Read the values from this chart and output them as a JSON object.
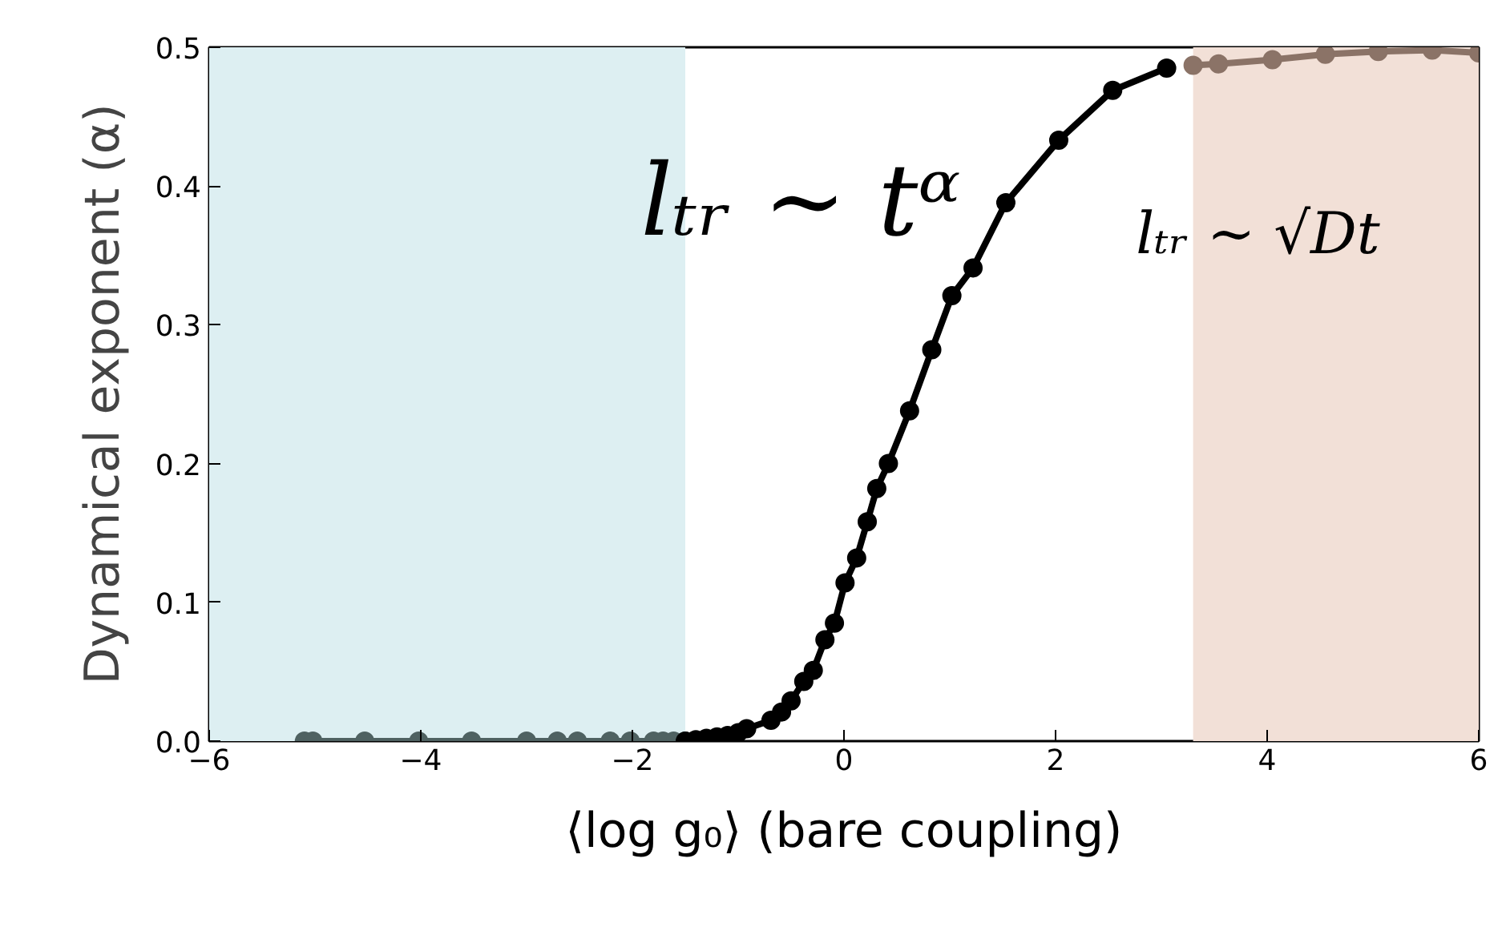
{
  "chart_data": {
    "type": "line",
    "xlabel": "⟨log g₀⟩ (bare coupling)",
    "ylabel": "Dynamical exponent (α)",
    "xlim": [
      -6,
      6
    ],
    "ylim": [
      0,
      0.5
    ],
    "xticks": [
      -6,
      -4,
      -2,
      0,
      2,
      4,
      6
    ],
    "yticks": [
      {
        "value": 0,
        "label": "0.0"
      },
      {
        "value": 0.1,
        "label": "0.1"
      },
      {
        "value": 0.2,
        "label": "0.2"
      },
      {
        "value": 0.3,
        "label": "0.3"
      },
      {
        "value": 0.4,
        "label": "0.4"
      },
      {
        "value": 0.5,
        "label": "0.5"
      }
    ],
    "grid": false,
    "marker": "circle",
    "line_style": "solid",
    "series": [
      {
        "color": "#4f6262",
        "x": [
          -5.1,
          -5.02,
          -4.53,
          -4.02,
          -3.52,
          -3.0,
          -2.71,
          -2.52,
          -2.21,
          -2.02,
          -1.8,
          -1.71,
          -1.61,
          -1.5
        ],
        "values": [
          0,
          0,
          0,
          0,
          0,
          0,
          0,
          0,
          0,
          0,
          0,
          0,
          0,
          0
        ]
      },
      {
        "color": "#000000",
        "x": [
          -1.5,
          -1.4,
          -1.3,
          -1.2,
          -1.1,
          -1.0,
          -0.92,
          -0.69,
          -0.59,
          -0.5,
          -0.38,
          -0.29,
          -0.18,
          -0.09,
          0.01,
          0.12,
          0.22,
          0.31,
          0.42,
          0.62,
          0.83,
          1.02,
          1.22,
          1.53,
          2.03,
          2.54,
          3.05
        ],
        "values": [
          0,
          0.001,
          0.002,
          0.003,
          0.004,
          0.006,
          0.009,
          0.015,
          0.021,
          0.029,
          0.043,
          0.051,
          0.073,
          0.085,
          0.114,
          0.132,
          0.158,
          0.182,
          0.2,
          0.238,
          0.282,
          0.321,
          0.341,
          0.388,
          0.433,
          0.469,
          0.485
        ]
      },
      {
        "color": "#8b7367",
        "x": [
          3.3,
          3.54,
          4.05,
          4.55,
          5.05,
          5.56,
          6.0
        ],
        "values": [
          0.487,
          0.488,
          0.491,
          0.495,
          0.497,
          0.498,
          0.496
        ]
      }
    ],
    "bands": [
      {
        "axis": "x",
        "from": -6,
        "to": -1.5,
        "color": "#ddeff2"
      },
      {
        "axis": "x",
        "from": 3.3,
        "to": 6,
        "color": "#f2e0d7"
      }
    ],
    "annotations": [
      "lₜᵣ ∼ tᵅ",
      "lₜᵣ ∼ √Dt"
    ]
  }
}
